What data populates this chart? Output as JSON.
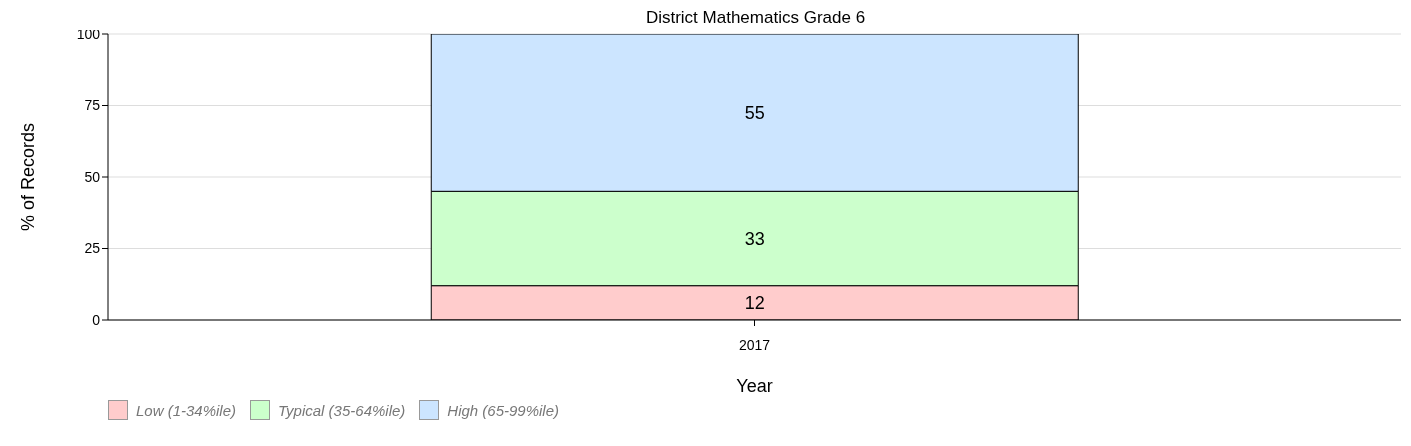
{
  "chart_data": {
    "type": "bar",
    "title": "District Mathematics Grade 6",
    "xlabel": "Year",
    "ylabel": "% of Records",
    "categories": [
      "2017"
    ],
    "stacked": true,
    "data_labels": true,
    "series": [
      {
        "name": "Low (1-34%ile)",
        "color": "#ffcccc",
        "values": [
          12
        ]
      },
      {
        "name": "Typical (35-64%ile)",
        "color": "#ccffcc",
        "values": [
          33
        ]
      },
      {
        "name": "High (65-99%ile)",
        "color": "#cce5ff",
        "values": [
          55
        ]
      }
    ],
    "ylim": [
      0,
      100
    ],
    "yticks": [
      0,
      25,
      50,
      75,
      100
    ],
    "grid": "y",
    "legend": "bottom left"
  }
}
